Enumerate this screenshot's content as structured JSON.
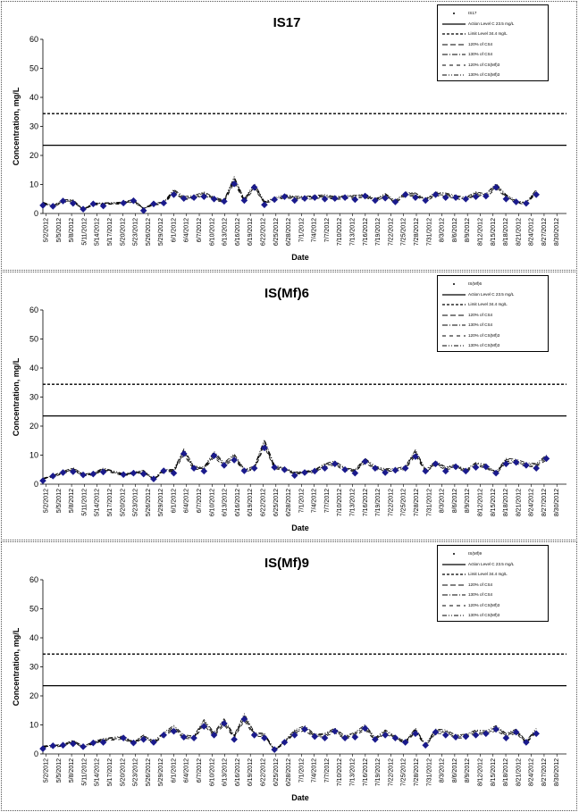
{
  "dates": [
    "5/2/2012",
    "5/5/2012",
    "5/8/2012",
    "5/11/2012",
    "5/14/2012",
    "5/17/2012",
    "5/20/2012",
    "5/23/2012",
    "5/26/2012",
    "5/29/2012",
    "6/1/2012",
    "6/4/2012",
    "6/7/2012",
    "6/10/2012",
    "6/13/2012",
    "6/16/2012",
    "6/19/2012",
    "6/22/2012",
    "6/25/2012",
    "6/28/2012",
    "7/1/2012",
    "7/4/2012",
    "7/7/2012",
    "7/10/2012",
    "7/13/2012",
    "7/16/2012",
    "7/19/2012",
    "7/22/2012",
    "7/25/2012",
    "7/28/2012",
    "7/31/2012",
    "8/3/2012",
    "8/6/2012",
    "8/9/2012",
    "8/12/2012",
    "8/15/2012",
    "8/18/2012",
    "8/21/2012",
    "8/24/2012",
    "8/27/2012",
    "8/30/2012"
  ],
  "styles": {
    "marker_color": "#1a1a8c",
    "line_color": "#000000"
  },
  "chart_data": [
    {
      "type": "scatter",
      "title": "IS17",
      "xlabel": "Date",
      "ylabel": "Concentration, mg/L",
      "ylim": [
        0,
        60
      ],
      "yticks": [
        0,
        10,
        20,
        30,
        40,
        50,
        60
      ],
      "legend": "top-right",
      "legend_entries": [
        "IS17",
        "Action Level C 23.5 mg/L",
        "Limit Level 34.4 mg/L",
        "120% of CS4",
        "130% of CS4",
        "120% of CS(Mf)3",
        "130% of CS(Mf)3"
      ],
      "action_level": 23.5,
      "limit_level": 34.4,
      "points": [
        [
          0,
          2.8
        ],
        [
          1,
          2.5
        ],
        [
          2,
          4.3
        ],
        [
          3,
          3.5
        ],
        [
          4,
          1.5
        ],
        [
          5,
          3.3
        ],
        [
          6,
          2.6
        ],
        [
          8,
          3.6
        ],
        [
          9,
          4.4
        ],
        [
          10,
          1.0
        ],
        [
          11,
          3.3
        ],
        [
          12,
          3.6
        ],
        [
          13,
          6.5
        ],
        [
          14,
          5.2
        ],
        [
          15,
          5.5
        ],
        [
          16,
          5.8
        ],
        [
          17,
          5.0
        ],
        [
          18,
          4.2
        ],
        [
          19,
          10.2
        ],
        [
          20,
          4.5
        ],
        [
          21,
          9.0
        ],
        [
          22,
          3.0
        ],
        [
          23,
          4.8
        ],
        [
          24,
          5.8
        ],
        [
          25,
          4.5
        ],
        [
          26,
          5.2
        ],
        [
          27,
          5.5
        ],
        [
          28,
          5.0
        ],
        [
          29,
          5.2
        ],
        [
          30,
          5.5
        ],
        [
          31,
          4.8
        ],
        [
          32,
          6.0
        ],
        [
          33,
          4.5
        ],
        [
          34,
          5.3
        ],
        [
          35,
          4.0
        ],
        [
          36,
          6.5
        ],
        [
          37,
          5.5
        ],
        [
          38,
          4.5
        ],
        [
          39,
          6.5
        ],
        [
          40,
          5.5
        ],
        [
          41,
          5.5
        ],
        [
          42,
          5.0
        ],
        [
          43,
          5.8
        ],
        [
          44,
          6.0
        ],
        [
          45,
          9.0
        ],
        [
          46,
          5.0
        ],
        [
          47,
          4.0
        ],
        [
          48,
          3.5
        ],
        [
          49,
          6.5
        ]
      ]
    },
    {
      "type": "scatter",
      "title": "IS(Mf)6",
      "xlabel": "Date",
      "ylabel": "Concentration, mg/L",
      "ylim": [
        0,
        60
      ],
      "yticks": [
        0,
        10,
        20,
        30,
        40,
        50,
        60
      ],
      "legend": "top-right",
      "legend_entries": [
        "IS(Mf)6",
        "Action Level C 23.5 mg/L",
        "Limit Level 34.4 mg/L",
        "120% of CS4",
        "130% of CS4",
        "120% of CS(Mf)3",
        "130% of CS(Mf)3"
      ],
      "action_level": 23.5,
      "limit_level": 34.4,
      "points": [
        [
          0,
          1.2
        ],
        [
          1,
          2.8
        ],
        [
          2,
          4.0
        ],
        [
          3,
          4.3
        ],
        [
          4,
          3.2
        ],
        [
          5,
          3.5
        ],
        [
          6,
          4.2
        ],
        [
          8,
          3.3
        ],
        [
          9,
          3.8
        ],
        [
          10,
          3.5
        ],
        [
          11,
          1.8
        ],
        [
          12,
          4.6
        ],
        [
          13,
          3.8
        ],
        [
          14,
          10.5
        ],
        [
          15,
          5.5
        ],
        [
          16,
          4.5
        ],
        [
          17,
          9.8
        ],
        [
          18,
          6.5
        ],
        [
          19,
          8.3
        ],
        [
          20,
          4.6
        ],
        [
          21,
          5.5
        ],
        [
          22,
          12.5
        ],
        [
          23,
          5.8
        ],
        [
          24,
          5.0
        ],
        [
          25,
          3.0
        ],
        [
          26,
          4.0
        ],
        [
          27,
          4.5
        ],
        [
          28,
          5.5
        ],
        [
          29,
          7.0
        ],
        [
          30,
          5.0
        ],
        [
          31,
          3.8
        ],
        [
          32,
          7.8
        ],
        [
          33,
          5.5
        ],
        [
          34,
          4.0
        ],
        [
          35,
          4.8
        ],
        [
          36,
          5.5
        ],
        [
          37,
          9.5
        ],
        [
          38,
          4.5
        ],
        [
          39,
          7.0
        ],
        [
          40,
          4.5
        ],
        [
          41,
          6.0
        ],
        [
          42,
          4.5
        ],
        [
          43,
          5.8
        ],
        [
          44,
          6.0
        ],
        [
          45,
          3.8
        ],
        [
          46,
          7.0
        ],
        [
          47,
          7.5
        ],
        [
          48,
          6.5
        ],
        [
          49,
          5.5
        ],
        [
          50,
          8.8
        ]
      ]
    },
    {
      "type": "scatter",
      "title": "IS(Mf)9",
      "xlabel": "Date",
      "ylabel": "Concentration, mg/L",
      "ylim": [
        0,
        60
      ],
      "yticks": [
        0,
        10,
        20,
        30,
        40,
        50,
        60
      ],
      "legend": "top-right",
      "legend_entries": [
        "IS(Mf)9",
        "Action Level C 23.5 mg/L",
        "Limit Level 34.4 mg/L",
        "120% of CS4",
        "130% of CS4",
        "120% of CS(Mf)3",
        "130% of CS(Mf)3"
      ],
      "action_level": 23.5,
      "limit_level": 34.4,
      "points": [
        [
          0,
          1.8
        ],
        [
          1,
          2.8
        ],
        [
          2,
          3.0
        ],
        [
          3,
          3.5
        ],
        [
          4,
          2.5
        ],
        [
          5,
          3.8
        ],
        [
          6,
          4.0
        ],
        [
          8,
          5.5
        ],
        [
          9,
          3.8
        ],
        [
          10,
          5.0
        ],
        [
          11,
          4.0
        ],
        [
          12,
          6.5
        ],
        [
          13,
          7.8
        ],
        [
          14,
          5.8
        ],
        [
          15,
          5.5
        ],
        [
          16,
          9.5
        ],
        [
          17,
          6.5
        ],
        [
          18,
          10.5
        ],
        [
          19,
          5.0
        ],
        [
          20,
          12.0
        ],
        [
          21,
          6.5
        ],
        [
          22,
          5.5
        ],
        [
          23,
          1.5
        ],
        [
          24,
          4.0
        ],
        [
          25,
          6.5
        ],
        [
          26,
          8.5
        ],
        [
          27,
          6.0
        ],
        [
          28,
          5.5
        ],
        [
          29,
          7.8
        ],
        [
          30,
          5.5
        ],
        [
          31,
          5.8
        ],
        [
          32,
          8.8
        ],
        [
          33,
          5.0
        ],
        [
          34,
          6.5
        ],
        [
          35,
          5.5
        ],
        [
          36,
          4.0
        ],
        [
          37,
          7.0
        ],
        [
          38,
          3.0
        ],
        [
          39,
          7.5
        ],
        [
          40,
          6.5
        ],
        [
          41,
          5.8
        ],
        [
          42,
          6.0
        ],
        [
          43,
          6.5
        ],
        [
          44,
          7.0
        ],
        [
          45,
          8.5
        ],
        [
          46,
          5.5
        ],
        [
          47,
          7.5
        ],
        [
          48,
          4.0
        ],
        [
          49,
          7.0
        ]
      ]
    }
  ]
}
